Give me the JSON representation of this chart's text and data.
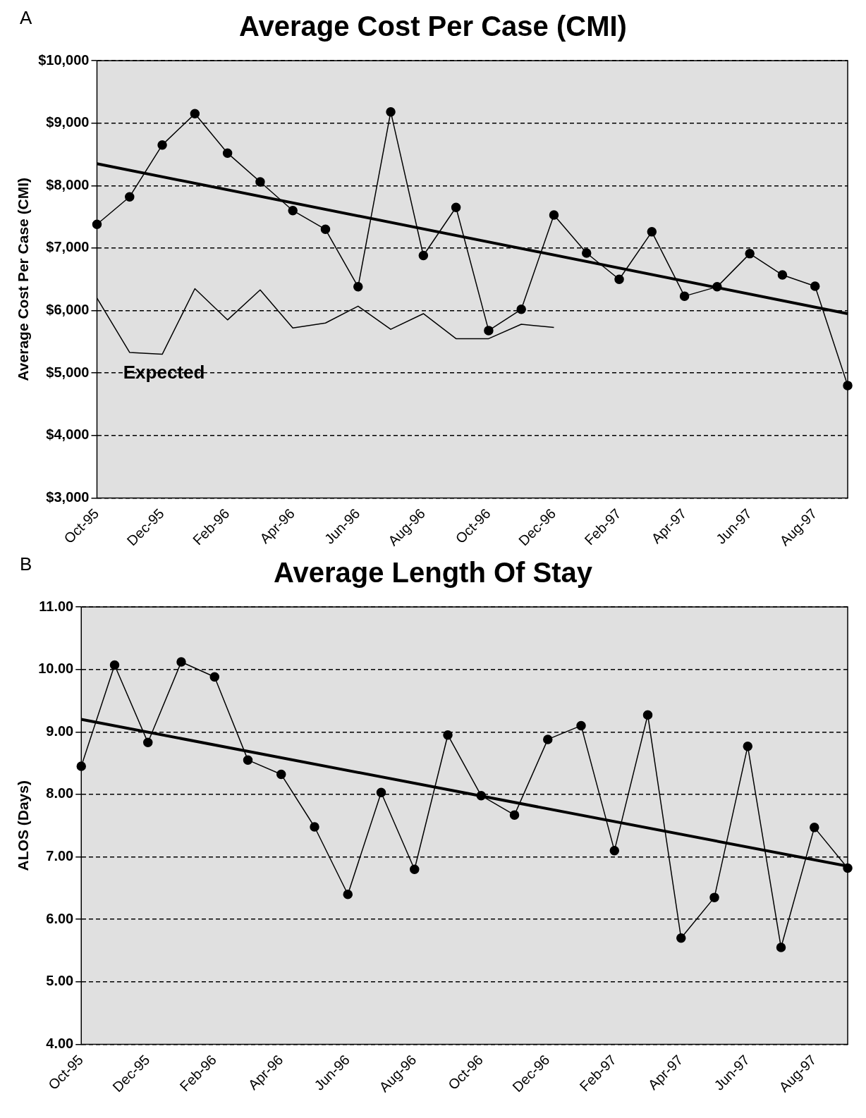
{
  "chart_data": [
    {
      "type": "line",
      "title": "Average Cost Per Case (CMI)",
      "ylabel": "Average Cost Per Case (CMI)",
      "annotations": [
        "A",
        "Expected"
      ],
      "categories": [
        "Oct-95",
        null,
        "Dec-95",
        null,
        "Feb-96",
        null,
        "Apr-96",
        null,
        "Jun-96",
        null,
        "Aug-96",
        null,
        "Oct-96",
        null,
        "Dec-96",
        null,
        "Feb-97",
        null,
        "Apr-97",
        null,
        "Jun-97",
        null,
        "Aug-97",
        null
      ],
      "series": [
        {
          "color": "#000000",
          "marker": "circle",
          "values": [
            7380,
            7820,
            8650,
            9150,
            8520,
            8060,
            7600,
            7300,
            6380,
            9180,
            6880,
            7650,
            5680,
            6020,
            7530,
            6920,
            6500,
            7260,
            6230,
            6380,
            6910,
            6570,
            6390,
            4800
          ]
        },
        {
          "color": "#000000",
          "marker": "none",
          "values": [
            6200,
            5330,
            5300,
            6350,
            5850,
            6330,
            5720,
            5800,
            6070,
            5700,
            5950,
            5550,
            5550,
            5780,
            5730,
            null,
            null,
            null,
            null,
            null,
            null,
            null,
            null,
            null
          ]
        },
        {
          "color": "#000000",
          "marker": "none",
          "values": [
            8350,
            null,
            null,
            null,
            null,
            null,
            null,
            null,
            null,
            null,
            null,
            null,
            null,
            null,
            null,
            null,
            null,
            null,
            null,
            null,
            null,
            null,
            null,
            5950
          ]
        }
      ],
      "ylim": [
        3000,
        10000
      ],
      "yticks": [
        {
          "value": 3000,
          "label": "$3,000"
        },
        {
          "value": 4000,
          "label": "$4,000"
        },
        {
          "value": 5000,
          "label": "$5,000"
        },
        {
          "value": 6000,
          "label": "$6,000"
        },
        {
          "value": 7000,
          "label": "$7,000"
        },
        {
          "value": 8000,
          "label": "$8,000"
        },
        {
          "value": 9000,
          "label": "$9,000"
        },
        {
          "value": 10000,
          "label": "$10,000"
        }
      ],
      "grid": "y",
      "legend": false
    },
    {
      "type": "line",
      "title": "Average Length Of Stay",
      "ylabel": "ALOS (Days)",
      "annotations": [
        "B"
      ],
      "categories": [
        "Oct-95",
        null,
        "Dec-95",
        null,
        "Feb-96",
        null,
        "Apr-96",
        null,
        "Jun-96",
        null,
        "Aug-96",
        null,
        "Oct-96",
        null,
        "Dec-96",
        null,
        "Feb-97",
        null,
        "Apr-97",
        null,
        "Jun-97",
        null,
        "Aug-97",
        null
      ],
      "series": [
        {
          "color": "#000000",
          "marker": "circle",
          "values": [
            8.45,
            10.07,
            8.83,
            10.12,
            9.88,
            8.55,
            8.32,
            7.48,
            6.4,
            8.03,
            6.8,
            8.95,
            7.98,
            7.67,
            8.88,
            9.1,
            7.1,
            9.27,
            5.7,
            6.35,
            8.77,
            5.55,
            7.47,
            6.82
          ]
        },
        {
          "color": "#000000",
          "marker": "none",
          "values": [
            9.2,
            null,
            null,
            null,
            null,
            null,
            null,
            null,
            null,
            null,
            null,
            null,
            null,
            null,
            null,
            null,
            null,
            null,
            null,
            null,
            null,
            null,
            null,
            6.85
          ]
        }
      ],
      "ylim": [
        4,
        11
      ],
      "yticks": [
        {
          "value": 4,
          "label": "4.00"
        },
        {
          "value": 5,
          "label": "5.00"
        },
        {
          "value": 6,
          "label": "6.00"
        },
        {
          "value": 7,
          "label": "7.00"
        },
        {
          "value": 8,
          "label": "8.00"
        },
        {
          "value": 9,
          "label": "9.00"
        },
        {
          "value": 10,
          "label": "10.00"
        },
        {
          "value": 11,
          "label": "11.00"
        }
      ],
      "grid": "y",
      "legend": false
    }
  ]
}
